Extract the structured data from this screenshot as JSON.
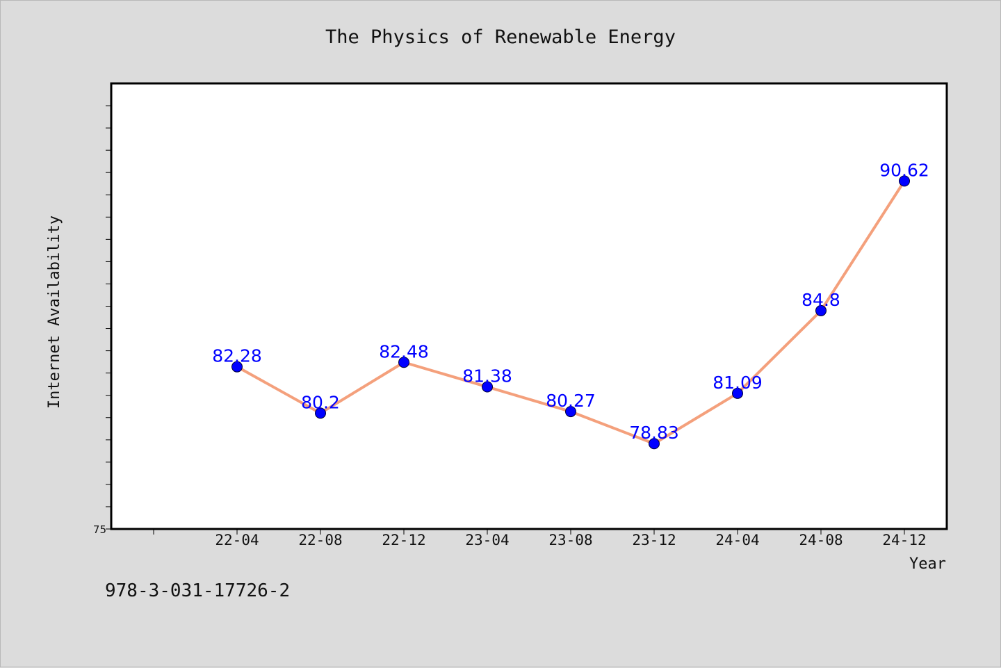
{
  "footer": {
    "isbn": "978-3-031-17726-2"
  },
  "colors": {
    "line": "#f4a07c",
    "marker": "#0000ff",
    "label": "#0000ff",
    "plot_bg": "#ffffff",
    "page_bg": "#dcdcdc"
  },
  "chart_data": {
    "type": "line",
    "title": "The Physics of Renewable Energy",
    "xlabel": "Year",
    "ylabel": "Internet Availability",
    "categories": [
      "22-04",
      "22-08",
      "22-12",
      "23-04",
      "23-08",
      "23-12",
      "24-04",
      "24-08",
      "24-12"
    ],
    "series": [
      {
        "values": [
          82.28,
          80.2,
          82.48,
          81.38,
          80.27,
          78.83,
          81.09,
          84.8,
          90.62
        ]
      }
    ],
    "data_labels": [
      "82.28",
      "80.2",
      "82.48",
      "81.38",
      "80.27",
      "78.83",
      "81.09",
      "84.8",
      "90.62"
    ],
    "ylim": [
      75,
      95
    ],
    "ytick_label": "75",
    "grid": false,
    "legend": "none"
  }
}
